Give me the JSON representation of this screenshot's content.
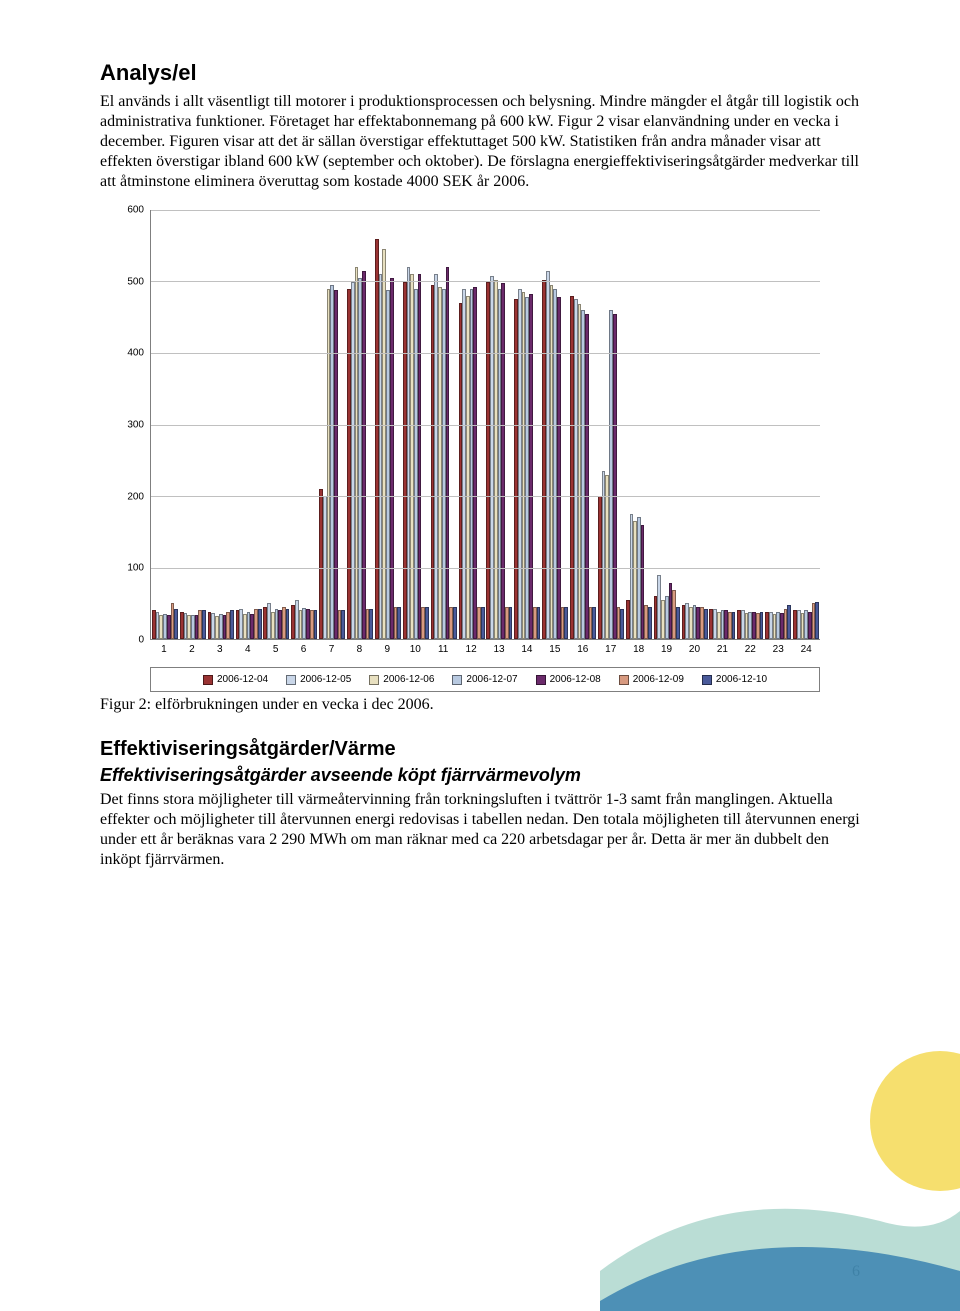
{
  "heading1": "Analys/el",
  "para1": "El används i allt väsentligt till motorer i produktionsprocessen och belysning. Mindre mängder el åtgår till logistik och administrativa funktioner. Företaget har effektabonnemang på 600 kW. Figur 2 visar elanvändning under en vecka i december. Figuren visar att det är sällan överstigar effektuttaget 500 kW. Statistiken från andra månader visar att effekten överstigar ibland 600 kW (september och oktober). De förslagna energieffektiviseringsåtgärder medverkar till att åtminstone eliminera överuttag som kostade 4000 SEK år 2006.",
  "chart": {
    "type": "bar",
    "ylim": [
      0,
      600
    ],
    "ytick_step": 100,
    "yticks": [
      0,
      100,
      200,
      300,
      400,
      500,
      600
    ],
    "categories": [
      "1",
      "2",
      "3",
      "4",
      "5",
      "6",
      "7",
      "8",
      "9",
      "10",
      "11",
      "12",
      "13",
      "14",
      "15",
      "16",
      "17",
      "18",
      "19",
      "20",
      "21",
      "22",
      "23",
      "24"
    ],
    "series": [
      {
        "name": "2006-12-04",
        "color": "#9a3333"
      },
      {
        "name": "2006-12-05",
        "color": "#c9d6e8"
      },
      {
        "name": "2006-12-06",
        "color": "#e8e0c0"
      },
      {
        "name": "2006-12-07",
        "color": "#b8c9e0"
      },
      {
        "name": "2006-12-08",
        "color": "#6b2a6b"
      },
      {
        "name": "2006-12-09",
        "color": "#d89a80"
      },
      {
        "name": "2006-12-10",
        "color": "#4a5a9a"
      }
    ],
    "values": [
      [
        40,
        38,
        33,
        35,
        34,
        50,
        42
      ],
      [
        38,
        37,
        33,
        34,
        33,
        40,
        40
      ],
      [
        38,
        37,
        32,
        35,
        33,
        38,
        40
      ],
      [
        40,
        42,
        35,
        38,
        35,
        42,
        42
      ],
      [
        45,
        50,
        38,
        42,
        40,
        45,
        42
      ],
      [
        48,
        55,
        40,
        43,
        42,
        40,
        40
      ],
      [
        210,
        200,
        490,
        495,
        488,
        40,
        40
      ],
      [
        490,
        500,
        520,
        505,
        515,
        42,
        42
      ],
      [
        560,
        510,
        545,
        488,
        505,
        45,
        45
      ],
      [
        500,
        520,
        510,
        490,
        510,
        45,
        45
      ],
      [
        495,
        510,
        492,
        490,
        520,
        45,
        45
      ],
      [
        470,
        490,
        480,
        490,
        492,
        45,
        45
      ],
      [
        500,
        508,
        502,
        490,
        498,
        45,
        45
      ],
      [
        475,
        490,
        485,
        478,
        482,
        45,
        45
      ],
      [
        502,
        515,
        495,
        490,
        478,
        45,
        45
      ],
      [
        480,
        475,
        468,
        460,
        455,
        45,
        45
      ],
      [
        200,
        235,
        230,
        460,
        455,
        45,
        42
      ],
      [
        55,
        175,
        165,
        170,
        160,
        48,
        45
      ],
      [
        60,
        90,
        55,
        60,
        78,
        68,
        45
      ],
      [
        48,
        50,
        45,
        48,
        45,
        45,
        42
      ],
      [
        42,
        42,
        38,
        40,
        40,
        38,
        38
      ],
      [
        40,
        40,
        36,
        38,
        38,
        37,
        38
      ],
      [
        38,
        38,
        35,
        38,
        37,
        42,
        48
      ],
      [
        40,
        40,
        36,
        40,
        38,
        50,
        52
      ]
    ],
    "grid_color": "#c0c0c0",
    "axis_color": "#7f7f7f",
    "background_color": "#ffffff",
    "label_fontsize": 10,
    "font_family": "Arial"
  },
  "figure_caption": "Figur 2: elförbrukningen under en vecka i dec 2006.",
  "heading2": "Effektiviseringsåtgärder/Värme",
  "heading3": "Effektiviseringsåtgärder avseende köpt fjärrvärmevolym",
  "para2": "Det finns stora möjligheter till värmeåtervinning från torkningsluften i tvättrör 1-3 samt från manglingen. Aktuella effekter och möjligheter till återvunnen energi redovisas i tabellen nedan. Den totala möjligheten till återvunnen energi under ett år beräknas vara 2 290 MWh om man räknar med ca 220 arbetsdagar per år. Detta är mer än dubbelt den inköpt fjärrvärmen.",
  "page_number": "6",
  "decoration": {
    "sun_color": "#f5d955",
    "wave_light": "#a9d5cb",
    "wave_dark": "#1f6fa8"
  }
}
